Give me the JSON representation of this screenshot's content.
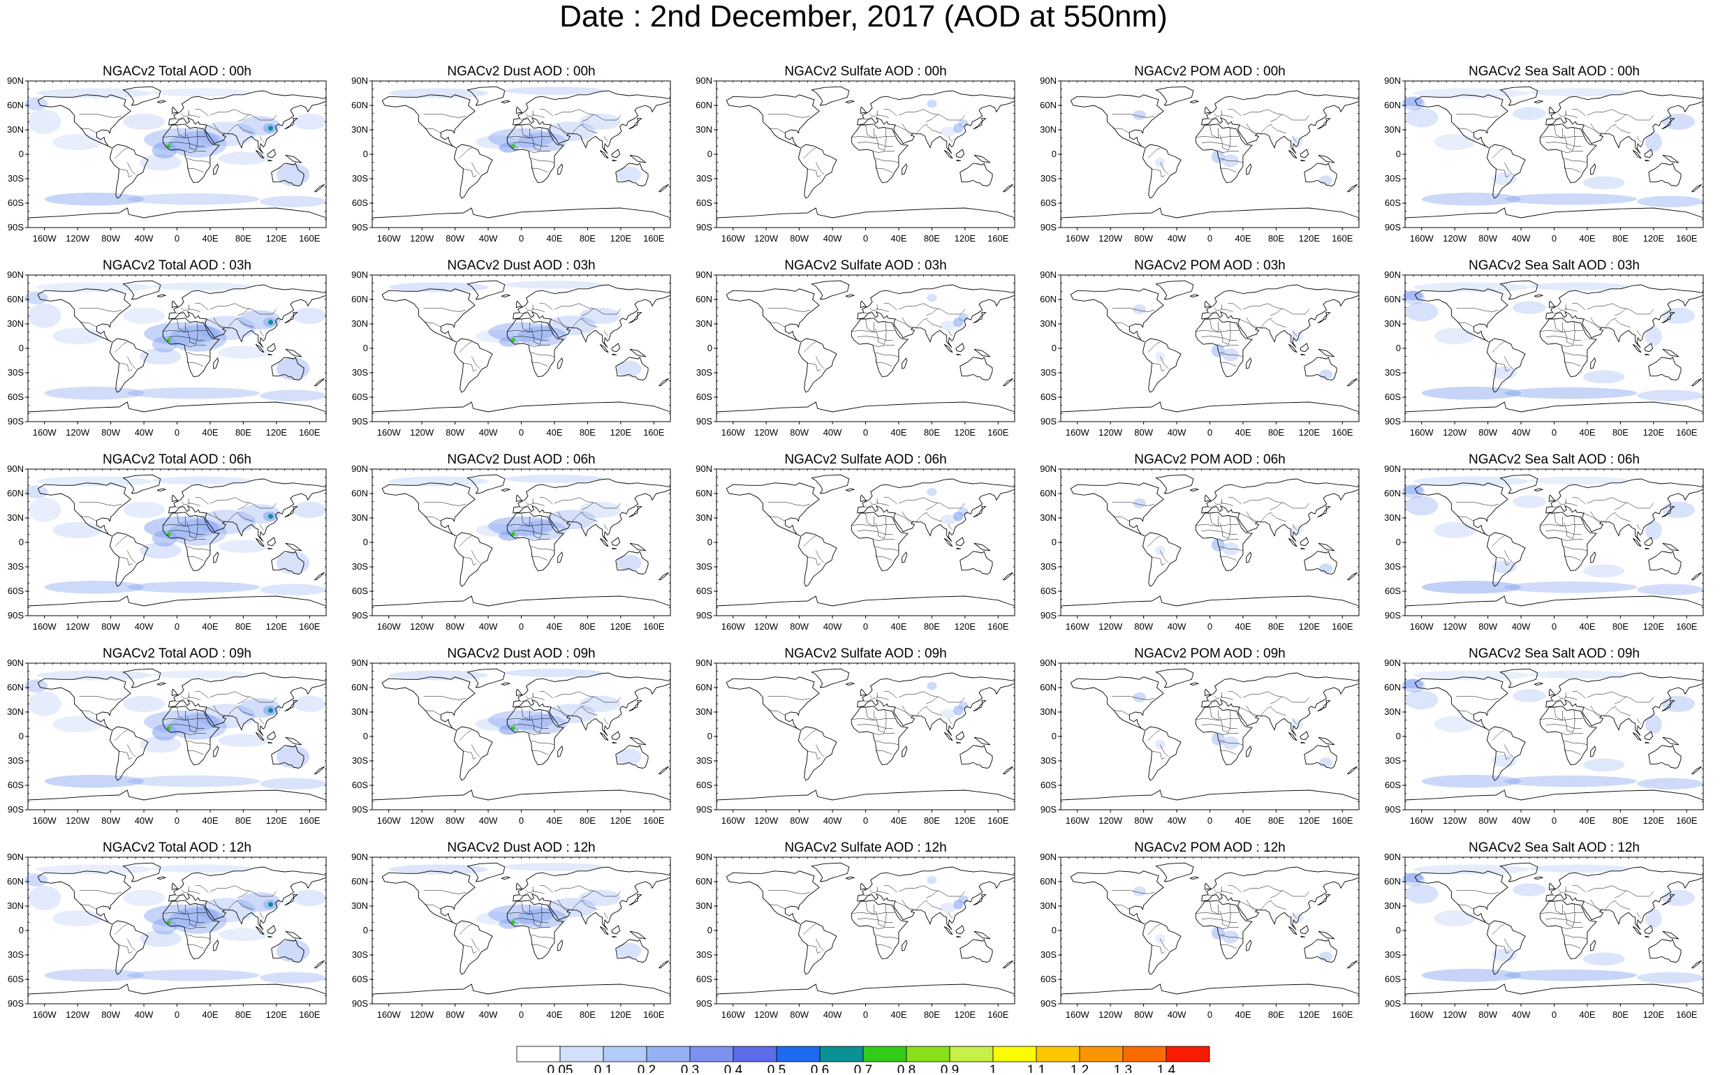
{
  "title": "Date : 2nd December, 2017 (AOD at 550nm)",
  "lat_labels": [
    "90N",
    "60N",
    "30N",
    "0",
    "30S",
    "60S",
    "90S"
  ],
  "lon_labels": [
    "160W",
    "120W",
    "80W",
    "40W",
    "0",
    "40E",
    "80E",
    "120E",
    "160E"
  ],
  "columns": [
    {
      "species": "total",
      "titles": [
        "NGACv2 Total AOD : 00h",
        "NGACv2 Total AOD : 03h",
        "NGACv2 Total AOD : 06h",
        "NGACv2 Total AOD : 09h",
        "NGACv2 Total AOD : 12h"
      ]
    },
    {
      "species": "dust",
      "titles": [
        "NGACv2 Dust AOD : 00h",
        "NGACv2 Dust AOD : 03h",
        "NGACv2 Dust AOD : 06h",
        "NGACv2 Dust AOD : 09h",
        "NGACv2 Dust AOD : 12h"
      ]
    },
    {
      "species": "sulfate",
      "titles": [
        "NGACv2 Sulfate AOD : 00h",
        "NGACv2 Sulfate AOD : 03h",
        "NGACv2 Sulfate AOD : 06h",
        "NGACv2 Sulfate AOD : 09h",
        "NGACv2 Sulfate AOD : 12h"
      ]
    },
    {
      "species": "pom",
      "titles": [
        "NGACv2 POM AOD : 00h",
        "NGACv2 POM AOD : 03h",
        "NGACv2 POM AOD : 06h",
        "NGACv2 POM AOD : 09h",
        "NGACv2 POM  AOD : 12h"
      ]
    },
    {
      "species": "seasalt",
      "titles": [
        "NGACv2 Sea Salt AOD : 00h",
        "NGACv2 Sea Salt AOD : 03h",
        "NGACv2 Sea Salt AOD : 06h",
        "NGACv2 Sea Salt  AOD : 09h",
        "NGACv2 Sea Salt AOD : 12h"
      ]
    }
  ],
  "colorbar": {
    "labels": [
      "0.05",
      "0.1",
      "0.2",
      "0.3",
      "0.4",
      "0.5",
      "0.6",
      "0.7",
      "0.8",
      "0.9",
      "1",
      "1.1",
      "1.2",
      "1.3",
      "1.4"
    ],
    "colors": [
      "#ffffff",
      "#d2e0fb",
      "#b3cbf7",
      "#94b2f3",
      "#7b93ef",
      "#5e6cec",
      "#1e6af0",
      "#0a9193",
      "#33cc18",
      "#88e01c",
      "#c5f046",
      "#fcfc00",
      "#fcc600",
      "#fb9400",
      "#fa6b00",
      "#f91c00"
    ]
  }
}
